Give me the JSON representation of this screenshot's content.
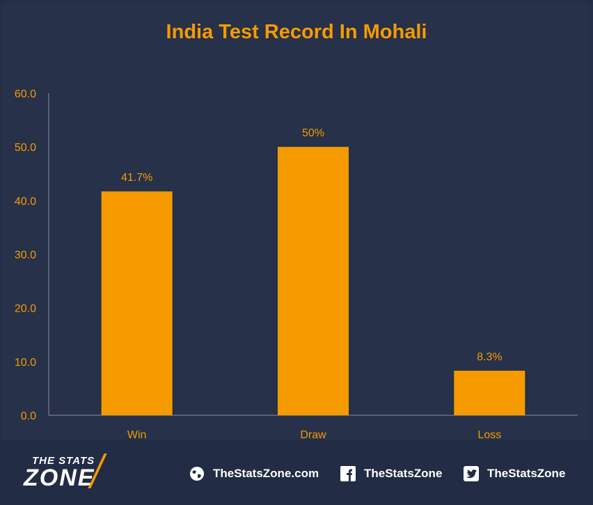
{
  "chart_data": {
    "type": "bar",
    "title": "India Test Record In Mohali",
    "categories": [
      "Win",
      "Draw",
      "Loss"
    ],
    "values": [
      41.7,
      50,
      8.3
    ],
    "data_labels": [
      "41.7%",
      "50%",
      "8.3%"
    ],
    "ylim": [
      0,
      60
    ],
    "yticks": [
      "0.0",
      "10.0",
      "20.0",
      "30.0",
      "40.0",
      "50.0",
      "60.0"
    ],
    "grid": false,
    "bar_color": "#f59b00",
    "text_color": "#f59b00"
  },
  "footer": {
    "brand_top": "THE STATS",
    "brand_bottom": "ZONE",
    "website": "TheStatsZone.com",
    "facebook": "TheStatsZone",
    "twitter": "TheStatsZone",
    "icons": [
      "globe-icon",
      "facebook-icon",
      "twitter-icon"
    ]
  }
}
